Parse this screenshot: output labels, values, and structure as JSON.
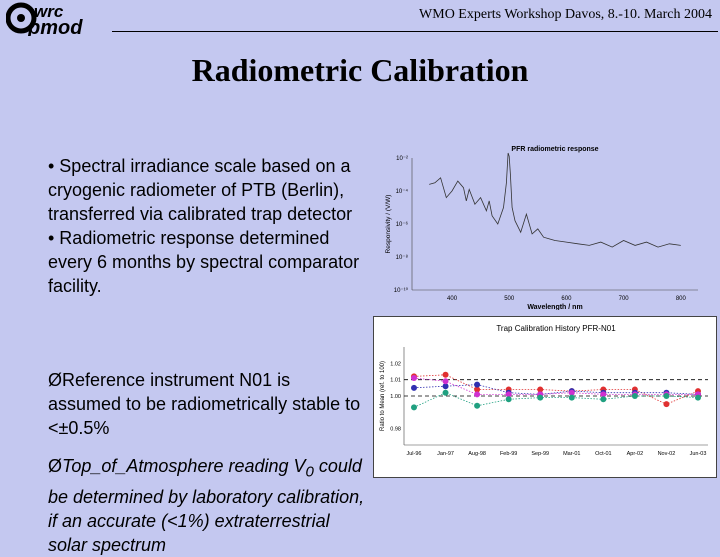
{
  "header": {
    "logo_text": "wrc pmod",
    "event": "WMO Experts Workshop Davos, 8.-10. March 2004"
  },
  "slide": {
    "title": "Radiometric Calibration",
    "bullets": [
      "• Spectral irradiance scale based on a cryogenic radiometer of PTB (Berlin), transferred via calibrated trap detector",
      "• Radiometric response determined every 6 months by spectral comparator facility."
    ],
    "arrow_items": [
      {
        "marker": "Ø",
        "text": "Reference instrument N01 is assumed to be radiometrically stable to <±0.5%"
      },
      {
        "marker": "Ø",
        "text_before": "Top_of_Atmosphere reading V",
        "subscript": "0",
        "text_after": " could be determined by laboratory calibration, if an accurate (<1%) extraterrestrial solar spectrum"
      }
    ]
  },
  "chart_data": [
    {
      "type": "line",
      "title": "PFR radiometric response",
      "xlabel": "Wavelength / nm",
      "ylabel": "Responsivity / (V/W)",
      "x_ticks": [
        "400",
        "500",
        "600",
        "700",
        "800"
      ],
      "xlim": [
        330,
        830
      ],
      "y_scale": "log",
      "y_ticks": [
        "10⁻¹⁰",
        "10⁻⁸",
        "10⁻⁶",
        "10⁻⁴",
        "10⁻²"
      ],
      "ylim_exp": [
        -10,
        -2
      ],
      "series": [
        {
          "x": [
            360,
            370,
            380,
            390,
            400,
            410,
            420,
            425,
            430,
            440,
            450,
            460,
            465,
            470,
            480,
            490,
            495,
            498,
            500,
            502,
            505,
            510,
            520,
            530,
            540,
            550,
            560,
            570,
            580,
            600,
            620,
            640,
            660,
            680,
            700,
            720,
            740,
            760,
            780,
            800
          ],
          "exp": [
            -3.6,
            -3.5,
            -3.2,
            -4.4,
            -4.0,
            -3.4,
            -3.8,
            -4.6,
            -3.9,
            -4.8,
            -4.4,
            -5.2,
            -4.6,
            -5.5,
            -6.0,
            -5.0,
            -3.5,
            -1.7,
            -1.9,
            -3.0,
            -5.0,
            -5.8,
            -6.5,
            -5.4,
            -6.6,
            -6.3,
            -6.8,
            -6.9,
            -7.0,
            -7.1,
            -7.2,
            -7.3,
            -7.1,
            -7.4,
            -7.0,
            -7.3,
            -7.1,
            -7.4,
            -7.2,
            -7.3
          ]
        }
      ]
    },
    {
      "type": "scatter",
      "title": "Trap Calibration History PFR-N01",
      "ylabel": "Ratio to Mean (ref. to 100)",
      "categories": [
        "Jul-96",
        "Jan-97",
        "Aug-98",
        "Feb-99",
        "Sep-99",
        "Mar-01",
        "Oct-01",
        "Apr-02",
        "Nov-02",
        "Jun-03"
      ],
      "y_ticks": [
        "0.98",
        "1.00",
        "1.01",
        "1.02"
      ],
      "ylim": [
        0.97,
        1.03
      ],
      "reference_lines": [
        1.0,
        1.01
      ],
      "series": [
        {
          "name": "",
          "color": "#e03030",
          "values": [
            1.012,
            1.013,
            1.004,
            1.004,
            1.004,
            1.003,
            1.004,
            1.004,
            0.995,
            1.003
          ]
        },
        {
          "name": "",
          "color": "#3030b0",
          "values": [
            1.005,
            1.006,
            1.007,
            1.002,
            1.001,
            1.003,
            1.002,
            1.002,
            1.002,
            1.001
          ]
        },
        {
          "name": "",
          "color": "#d030d0",
          "values": [
            1.011,
            1.009,
            1.001,
            1.001,
            1.001,
            1.002,
            1.001,
            1.001,
            1.001,
            1.001
          ]
        },
        {
          "name": "",
          "color": "#20a080",
          "values": [
            0.993,
            1.002,
            0.994,
            0.998,
            0.999,
            0.999,
            0.998,
            1.0,
            1.0,
            0.999
          ]
        }
      ]
    }
  ]
}
